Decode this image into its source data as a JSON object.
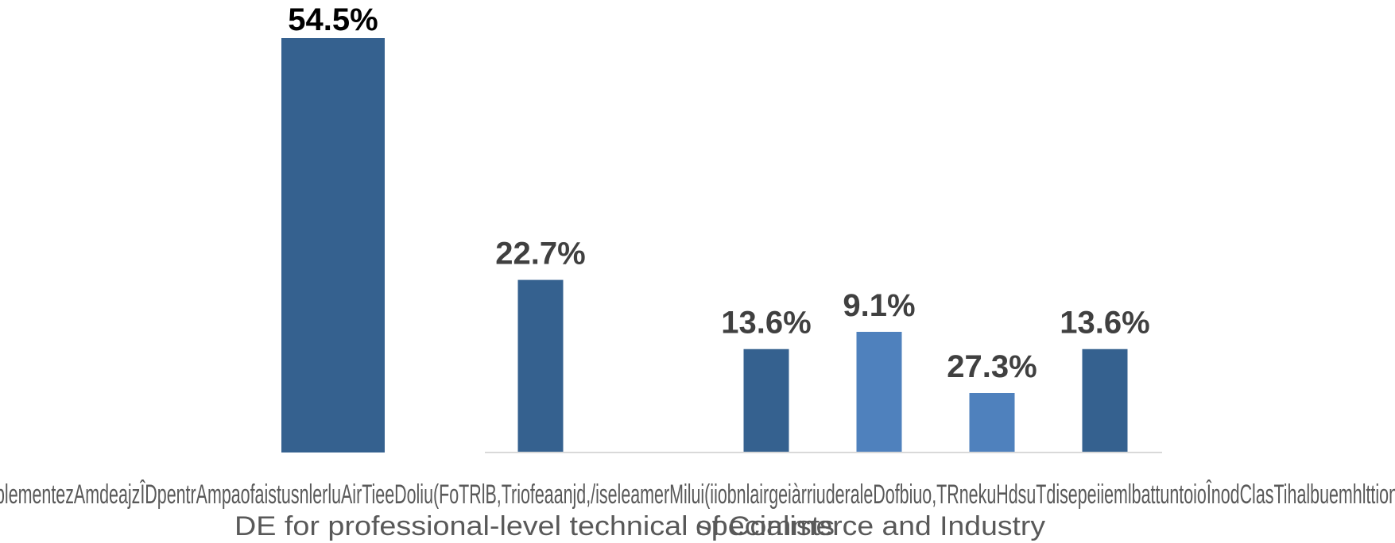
{
  "chart_data": {
    "type": "bar",
    "title": "",
    "xlabel": "",
    "ylabel": "",
    "ylim": [
      0,
      60
    ],
    "grid": false,
    "legend": "none",
    "categories": [
      "Implementarea unor programe ID pentru Amenajarea Teritoriului / Agenția de Dezvoltare Regională",
      "Cursuri de Dezvoltare Profesională în domeniul TIC (Tehnologia Informației și Comunicațiilor)",
      "Cursuri ID/DE pentru personalul din administrația publică (TIC, Management)",
      "Cursuri ID pentru Camera de Comerț și Industrie",
      "Educație și formare de tip DE / ID pentru specialiști tehnici",
      "Implementarea unor cursuri ID/DE for professional-level technical specialists"
    ],
    "category_lines": [
      "plementezAmdeajzÎDpentrAmpaofaistusnlerluAirTieeDoliu(FoTRlB,Triofeaanjd,/iseleamerMilui(iiobnlairgeiàrriuderaleDofbiuo,TRnekuHdsuTdisepeiiemlbattuntoioÎnodClasTihalbuemhlttion",
      "DE for professional-level technical specialists",
      "of Commerce and Industry"
    ],
    "values": [
      54.5,
      22.7,
      13.6,
      9.1,
      27.3,
      13.6
    ],
    "labels": [
      "54.5%",
      "22.7%",
      "13.6%",
      "9.1%",
      "27.3%",
      "13.6%"
    ],
    "colors": [
      "#35618f",
      "#35618f",
      "#35618f",
      "#4f81bd",
      "#4f81bd",
      "#35618f"
    ]
  }
}
